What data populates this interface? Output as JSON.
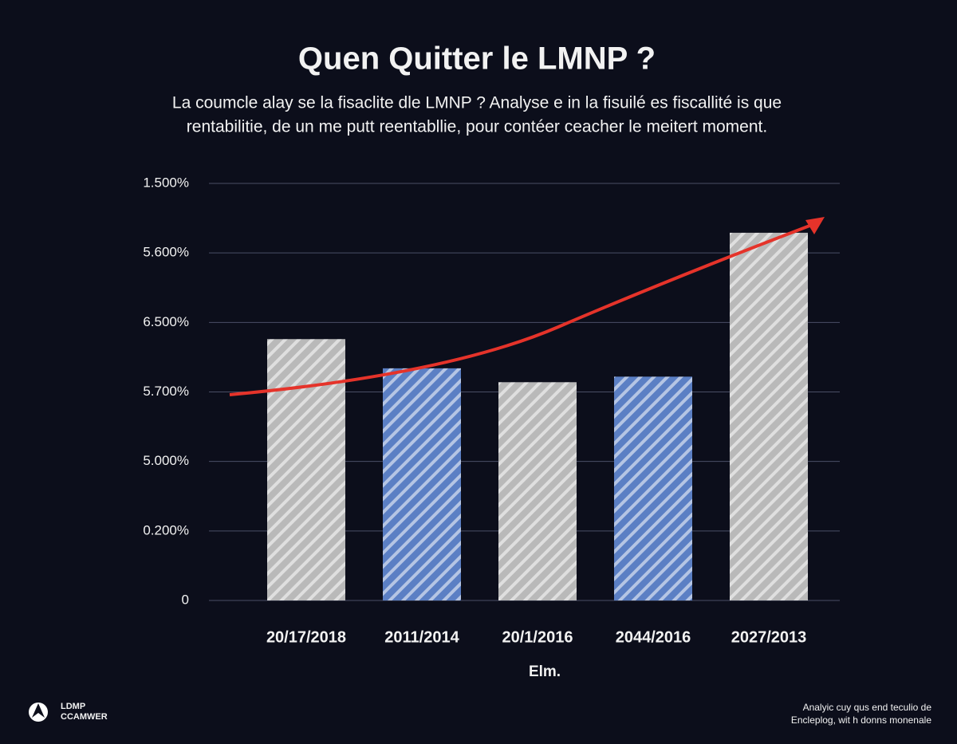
{
  "chart_data": {
    "type": "bar",
    "title": "Quen Quitter le LMNP ?",
    "subtitle": [
      "La coumcle alay se la fisaclite dle LMNP ? Analyse e in la fisuilé es fiscallité is que",
      "rentabilitie, de un me putt reentabllie, pour contéer ceacher le meitert moment."
    ],
    "x_label": "Elm.",
    "categories": [
      "20/17/2018",
      "2011/2014",
      "20/1/2016",
      "2044/2016",
      "2027/2013"
    ],
    "values": [
      3.76,
      3.34,
      3.14,
      3.22,
      5.29
    ],
    "colors": [
      "#b9b9b9",
      "#5b7fc4",
      "#b9b9b9",
      "#5b7fc4",
      "#b9b9b9"
    ],
    "ylim": [
      0,
      6
    ],
    "yticks": [
      0,
      {
        "value": 1,
        "label": "0.200%"
      },
      {
        "value": 2,
        "label": "5.000%"
      },
      {
        "value": 3,
        "label": "5.700%"
      },
      {
        "value": 4,
        "label": "6.500%"
      },
      {
        "value": 5,
        "label": "5.600%"
      },
      {
        "value": 6,
        "label": "1.500%"
      }
    ],
    "grid": true
  },
  "logo": [
    "LDMP",
    "CCAMWER"
  ],
  "footnote": [
    "Analyic cuy qus end teculio de",
    "Encleplog, wit h donns monenale"
  ]
}
